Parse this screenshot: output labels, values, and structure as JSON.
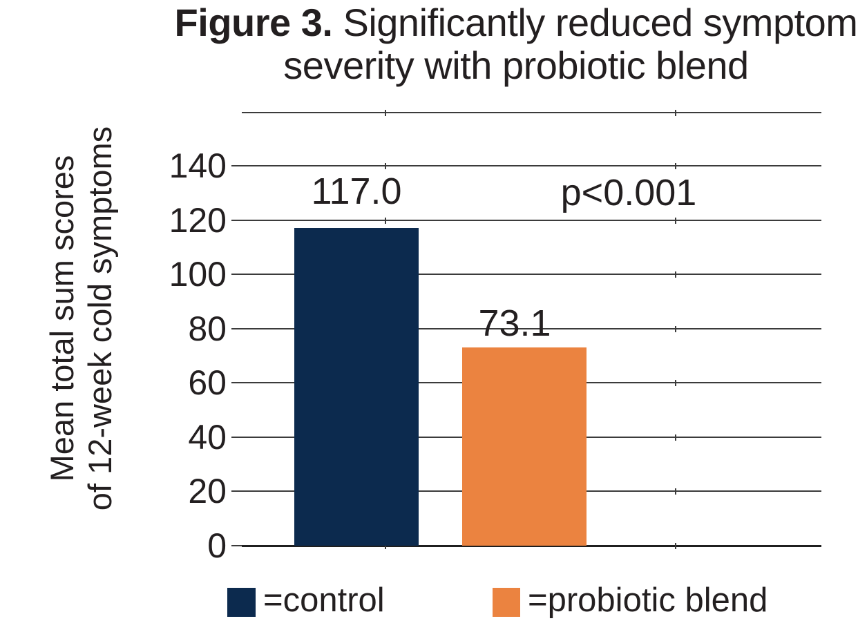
{
  "figure_title": {
    "prefix": "Figure 3.",
    "line1_rest": " Significantly reduced symptom",
    "line2": "severity with probiotic blend",
    "full": "Figure 3. Significantly reduced symptom severity with probiotic blend"
  },
  "chart_data": {
    "type": "bar",
    "title": "Figure 3. Significantly reduced symptom severity with probiotic blend",
    "categories": [
      "control",
      "probiotic blend"
    ],
    "values": [
      117.0,
      73.1
    ],
    "value_labels": [
      "117.0",
      "73.1"
    ],
    "annotation": "p<0.001",
    "ylabel": "Mean total sum scores of 12-week cold symptoms",
    "ylabel_lines": [
      "Mean total sum scores",
      "of 12-week cold symptoms"
    ],
    "xlabel": "",
    "yticks": [
      0,
      20,
      40,
      60,
      80,
      100,
      120,
      140
    ],
    "ylim": [
      0,
      140
    ],
    "grid": "horizontal gridlines at every y tick, short notch marks crossing each line",
    "legend_position": "bottom",
    "bar_colors": [
      "#0c2a4e",
      "#eb8340"
    ]
  },
  "legend": {
    "items": [
      {
        "label": "=control",
        "color": "#0c2a4e"
      },
      {
        "label": "=probiotic blend",
        "color": "#eb8340"
      }
    ]
  },
  "colors": {
    "background": "#ffffff",
    "text": "#231f20",
    "gridline": "#3b3b3b",
    "axis_line": "#1f1f1f",
    "control_bar": "#0c2a4e",
    "probiotic_bar": "#eb8340"
  }
}
